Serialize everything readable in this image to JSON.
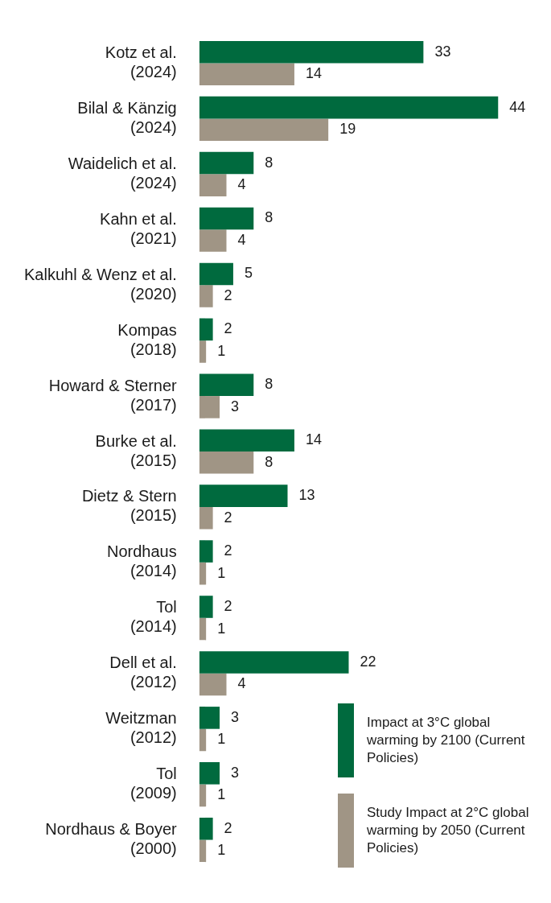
{
  "chart_data": {
    "type": "bar",
    "orientation": "horizontal",
    "categories": [
      "Kotz et al.\n(2024)",
      "Bilal & Känzig\n(2024)",
      "Waidelich et al.\n(2024)",
      "Kahn et al.\n(2021)",
      "Kalkuhl & Wenz et al.\n(2020)",
      "Kompas\n(2018)",
      "Howard & Sterner\n(2017)",
      "Burke et al.\n(2015)",
      "Dietz & Stern\n(2015)",
      "Nordhaus\n(2014)",
      "Tol\n(2014)",
      "Dell et al.\n(2012)",
      "Weitzman\n(2012)",
      "Tol\n(2009)",
      "Nordhaus & Boyer\n(2000)"
    ],
    "series": [
      {
        "name": "Impact at 3°C global warming by 2100 (Current Policies)",
        "color": "#006a3e",
        "values": [
          33,
          44,
          8,
          8,
          5,
          2,
          8,
          14,
          13,
          2,
          2,
          22,
          3,
          3,
          2
        ]
      },
      {
        "name": "Study Impact at 2°C global warming by 2050 (Current Policies)",
        "color": "#a09585",
        "values": [
          14,
          19,
          4,
          4,
          2,
          1,
          3,
          8,
          2,
          1,
          1,
          4,
          1,
          1,
          1
        ]
      }
    ],
    "data_labels": true,
    "legend": "bottom right",
    "grid": false,
    "tick_labels": "y"
  }
}
